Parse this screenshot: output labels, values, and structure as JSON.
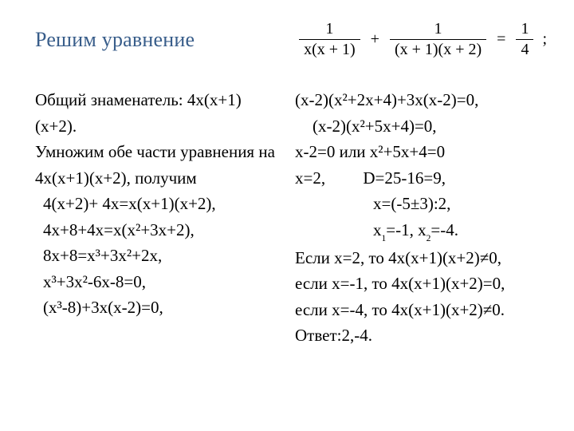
{
  "colors": {
    "title": "#385d8a",
    "text": "#000000",
    "background": "#ffffff"
  },
  "typography": {
    "family": "Times New Roman",
    "title_fontsize": 26,
    "body_fontsize": 21,
    "equation_fontsize": 20
  },
  "title": "Решим уравнение",
  "equation": {
    "frac1_num": "1",
    "frac1_den": "x(x + 1)",
    "plus": "+",
    "frac2_num": "1",
    "frac2_den": "(x + 1)(x + 2)",
    "eq": "=",
    "frac3_num": "1",
    "frac3_den": "4",
    "semicolon": ";"
  },
  "left_column": [
    "Общий знаменатель: 4х(х+1)(х+2).",
    "Умножим обе части уравнения на 4х(х+1)(х+2), получим",
    "4(х+2)+ 4х=х(х+1)(х+2),",
    "4х+8+4х=х(х²+3х+2),",
    "8х+8=х³+3х²+2х,",
    "х³+3х²-6х-8=0,",
    "(х³-8)+3х(х-2)=0,"
  ],
  "right_column": {
    "l1": "(х-2)(х²+2х+4)+3х(х-2)=0,",
    "l2": "(х-2)(х²+5х+4)=0,",
    "l3": "х-2=0 или х²+5х+4=0",
    "l4_a": "х=2,",
    "l4_b": "D=25-16=9,",
    "l5": "х=(-5±3):2,",
    "l6_pre": "х",
    "l6_sub1": "1",
    "l6_mid": "=-1, х",
    "l6_sub2": "2",
    "l6_post": "=-4.",
    "l7": "Если х=2, то 4х(х+1)(х+2)≠0,",
    "l8": "если х=-1, то 4х(х+1)(х+2)=0,",
    "l9": "если х=-4, то 4х(х+1)(х+2)≠0.",
    "l10": "Ответ:2,-4."
  }
}
